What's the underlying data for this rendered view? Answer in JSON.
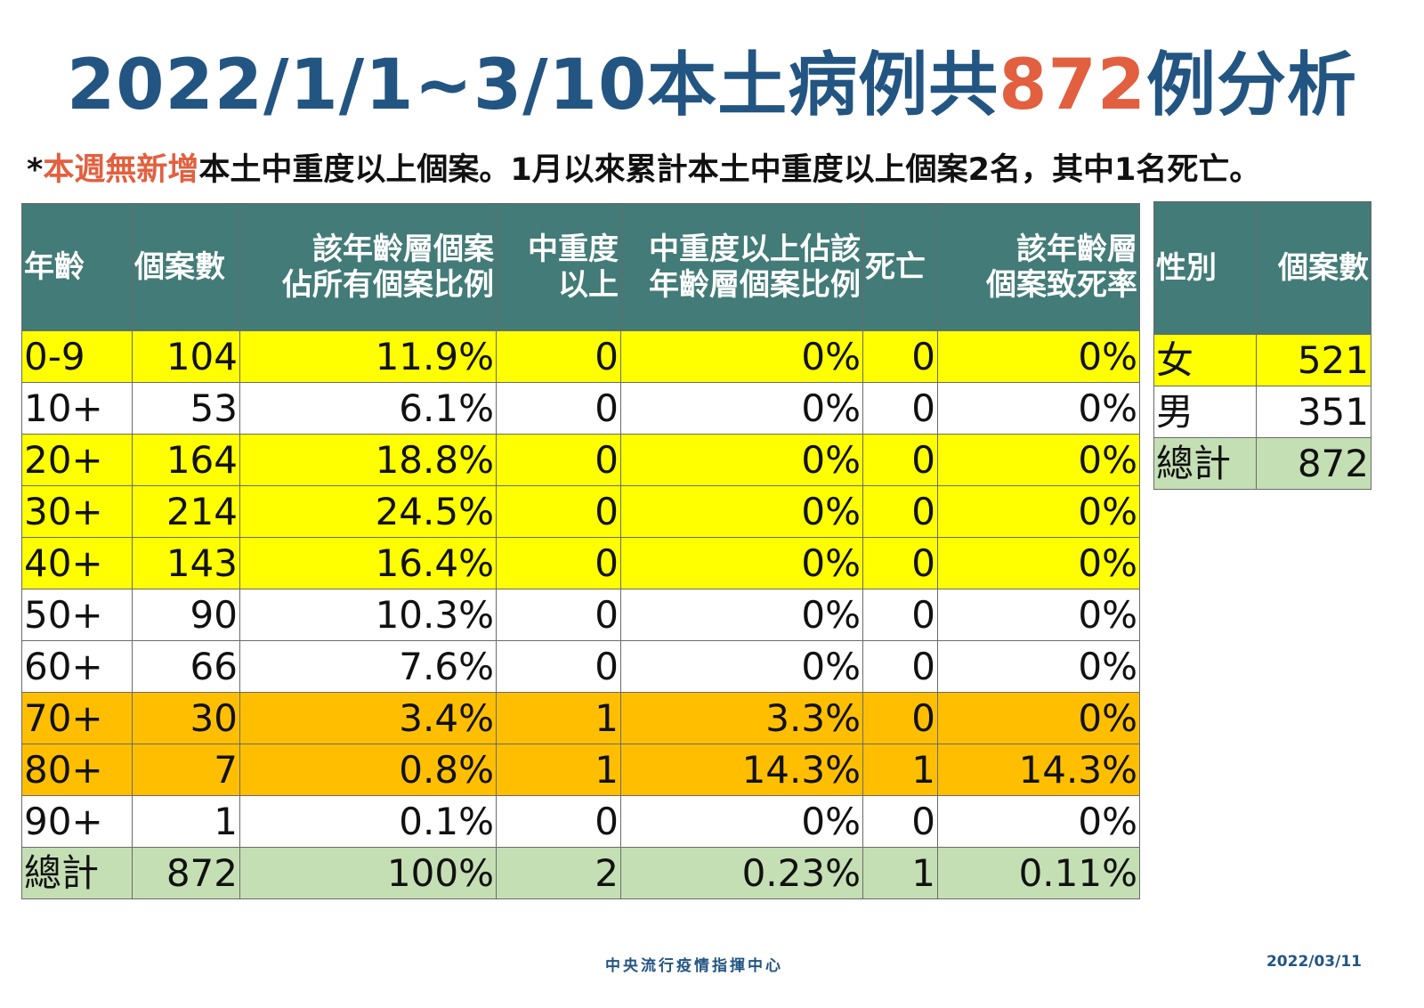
{
  "title": {
    "prefix": "2022/1/1~3/10本土病例共",
    "highlight": "872",
    "suffix": "例分析"
  },
  "note": {
    "star": "*",
    "highlight": "本週無新增",
    "rest": "本土中重度以上個案。1月以來累計本土中重度以上個案2名，其中1名死亡。"
  },
  "age_table": {
    "headers": {
      "age": "年齡",
      "cases": "個案數",
      "share_1": "該年齡層個案",
      "share_2": "佔所有個案比例",
      "severe_1": "中重度",
      "severe_2": "以上",
      "severe_share_1": "中重度以上佔該",
      "severe_share_2": "年齡層個案比例",
      "deaths": "死亡",
      "cfr_1": "該年齡層",
      "cfr_2": "個案致死率"
    },
    "rows": [
      {
        "age": "0-9",
        "cases": "104",
        "share": "11.9%",
        "severe": "0",
        "severe_share": "0%",
        "deaths": "0",
        "cfr": "0%",
        "color": "yellow"
      },
      {
        "age": "10+",
        "cases": "53",
        "share": "6.1%",
        "severe": "0",
        "severe_share": "0%",
        "deaths": "0",
        "cfr": "0%",
        "color": "white"
      },
      {
        "age": "20+",
        "cases": "164",
        "share": "18.8%",
        "severe": "0",
        "severe_share": "0%",
        "deaths": "0",
        "cfr": "0%",
        "color": "yellow"
      },
      {
        "age": "30+",
        "cases": "214",
        "share": "24.5%",
        "severe": "0",
        "severe_share": "0%",
        "deaths": "0",
        "cfr": "0%",
        "color": "yellow"
      },
      {
        "age": "40+",
        "cases": "143",
        "share": "16.4%",
        "severe": "0",
        "severe_share": "0%",
        "deaths": "0",
        "cfr": "0%",
        "color": "yellow"
      },
      {
        "age": "50+",
        "cases": "90",
        "share": "10.3%",
        "severe": "0",
        "severe_share": "0%",
        "deaths": "0",
        "cfr": "0%",
        "color": "white"
      },
      {
        "age": "60+",
        "cases": "66",
        "share": "7.6%",
        "severe": "0",
        "severe_share": "0%",
        "deaths": "0",
        "cfr": "0%",
        "color": "white"
      },
      {
        "age": "70+",
        "cases": "30",
        "share": "3.4%",
        "severe": "1",
        "severe_share": "3.3%",
        "deaths": "0",
        "cfr": "0%",
        "color": "orange"
      },
      {
        "age": "80+",
        "cases": "7",
        "share": "0.8%",
        "severe": "1",
        "severe_share": "14.3%",
        "deaths": "1",
        "cfr": "14.3%",
        "color": "orange"
      },
      {
        "age": "90+",
        "cases": "1",
        "share": "0.1%",
        "severe": "0",
        "severe_share": "0%",
        "deaths": "0",
        "cfr": "0%",
        "color": "white"
      }
    ],
    "total": {
      "age": "總計",
      "cases": "872",
      "share": "100%",
      "severe": "2",
      "severe_share": "0.23%",
      "deaths": "1",
      "cfr": "0.11%"
    }
  },
  "sex_table": {
    "headers": {
      "sex": "性別",
      "cases": "個案數"
    },
    "rows": [
      {
        "sex": "女",
        "cases": "521",
        "color": "yellow"
      },
      {
        "sex": "男",
        "cases": "351",
        "color": "white"
      },
      {
        "sex": "總計",
        "cases": "872",
        "color": "total"
      }
    ]
  },
  "footer": {
    "org": "中央流行疫情指揮中心",
    "date": "2022/03/11"
  },
  "colors": {
    "title": "#235582",
    "highlight": "#e2603f",
    "header_bg": "#427b78",
    "yellow": "#ffff00",
    "orange": "#ffbf00",
    "total": "#c5dfb4"
  }
}
